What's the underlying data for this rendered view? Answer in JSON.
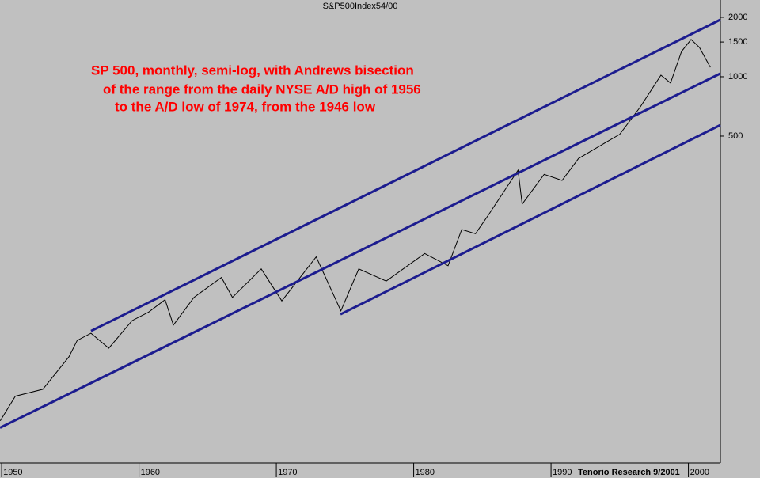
{
  "chart_data": {
    "type": "line",
    "title": "S&P500Index54/00",
    "annotations": [
      "SP 500, monthly, semi-log, with Andrews bisection",
      "of the range from the daily NYSE A/D high of 1956",
      "to the A/D low of 1974, from the 1946 low"
    ],
    "credit": "Tenorio Research 9/2001",
    "log_y": true,
    "xlim": [
      1949.88,
      2002.33
    ],
    "xticks": [
      1950,
      1960,
      1970,
      1980,
      1990,
      2000
    ],
    "ylim": [
      11,
      2450
    ],
    "yticks": [
      500,
      1000,
      1500,
      2000
    ],
    "series": [
      {
        "color": "#000000",
        "x": [
          1949.9,
          1951,
          1953,
          1954.9,
          1955.5,
          1956.5,
          1957.8,
          1959.5,
          1960.7,
          1961.9,
          1962.5,
          1964,
          1966,
          1966.8,
          1968.9,
          1970.4,
          1972.9,
          1974.7,
          1976,
          1978,
          1980.8,
          1982.5,
          1983.5,
          1984.5,
          1985.5,
          1987.6,
          1987.9,
          1989.5,
          1990.8,
          1992,
          1994,
          1995,
          1996.5,
          1998,
          1998.7,
          1999.5,
          2000.2,
          2000.8,
          2001.6
        ],
        "values": [
          18,
          24,
          26,
          38,
          46,
          50,
          42,
          58,
          64,
          74,
          55,
          76,
          96,
          76,
          106,
          73,
          122,
          65,
          106,
          92,
          127,
          110,
          168,
          160,
          202,
          336,
          226,
          320,
          298,
          385,
          465,
          510,
          704,
          1018,
          929,
          1344,
          1545,
          1408,
          1117
        ]
      },
      {
        "color": "#1c1c8f",
        "x": [
          1956.51,
          2002.33
        ],
        "values": [
          51.4,
          1946
        ]
      },
      {
        "color": "#1c1c8f",
        "x": [
          1949.88,
          2002.33
        ],
        "values": [
          16.6,
          1038
        ]
      },
      {
        "color": "#1c1c8f",
        "x": [
          1974.67,
          2002.33
        ],
        "values": [
          62.4,
          569
        ]
      }
    ]
  }
}
